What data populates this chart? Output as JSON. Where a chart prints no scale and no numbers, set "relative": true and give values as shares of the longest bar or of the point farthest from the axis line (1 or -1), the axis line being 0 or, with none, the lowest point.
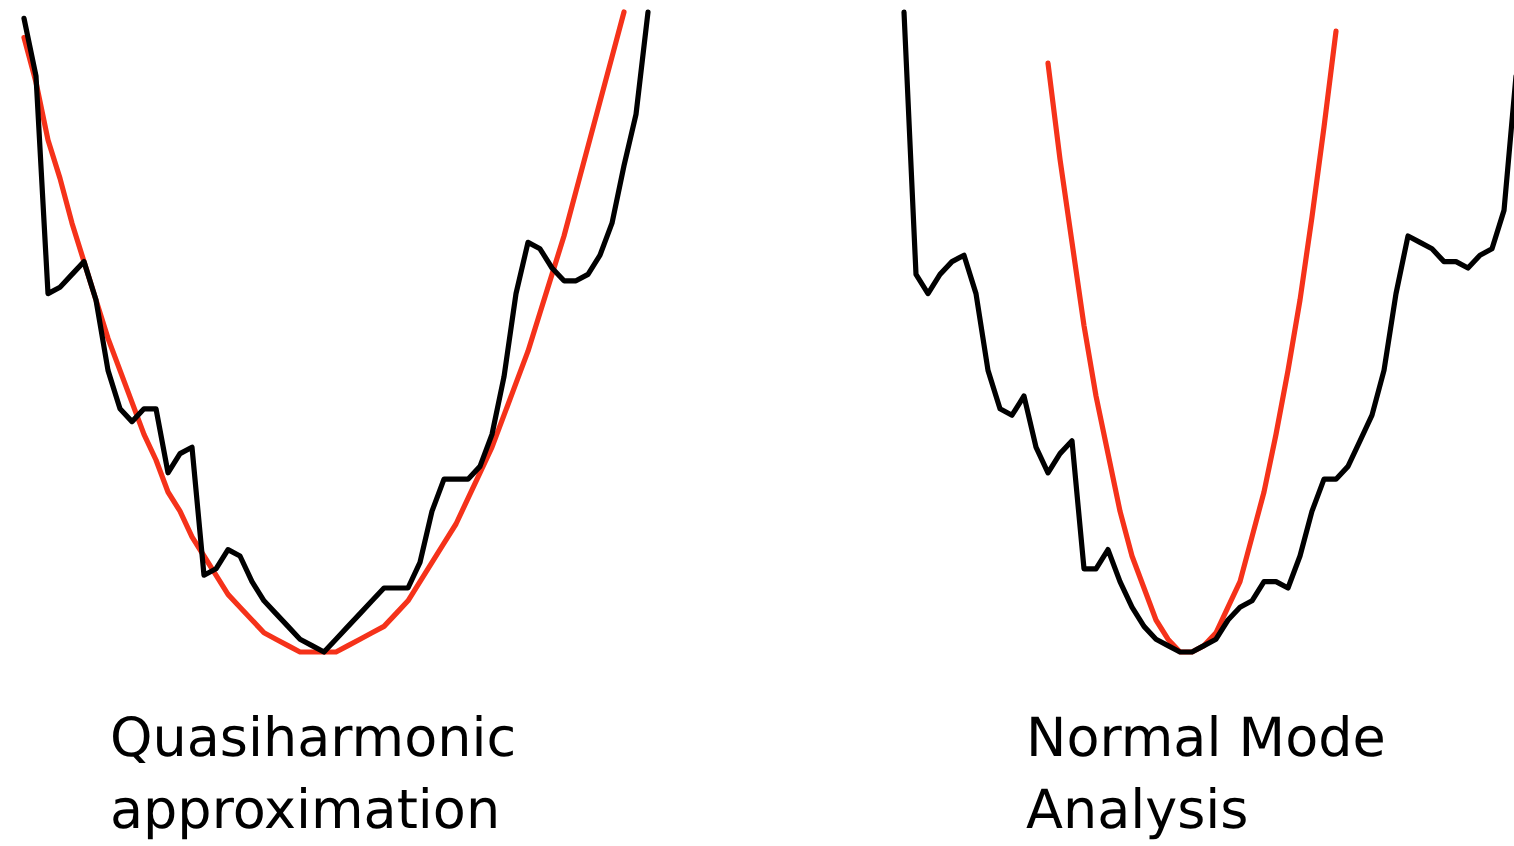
{
  "chart_data": [
    {
      "type": "line",
      "title": "Quasiharmonic approximation",
      "relative": true,
      "legend": false,
      "marker": "none",
      "line_style": "solid",
      "categories": [
        null,
        null,
        null,
        null,
        null,
        null,
        null,
        null,
        null,
        null,
        null,
        null,
        null,
        null,
        null,
        null,
        null,
        null,
        null,
        null,
        null,
        null,
        null,
        null,
        null,
        null,
        null,
        null,
        null,
        null,
        null,
        null,
        null,
        null,
        null,
        null,
        null,
        null,
        null,
        null,
        null,
        null,
        null,
        null,
        null,
        null,
        null,
        null,
        null,
        null,
        null,
        null,
        null
      ],
      "series": [
        {
          "color": "#000000",
          "values": [
            0.99,
            0.9,
            0.56,
            0.57,
            0.59,
            0.61,
            0.55,
            0.44,
            0.38,
            0.36,
            0.38,
            0.38,
            0.28,
            0.31,
            0.32,
            0.12,
            0.13,
            0.16,
            0.15,
            0.11,
            0.08,
            0.06,
            0.04,
            0.02,
            0.01,
            0,
            0.02,
            0.04,
            0.06,
            0.08,
            0.1,
            0.1,
            0.1,
            0.14,
            0.22,
            0.27,
            0.27,
            0.27,
            0.29,
            0.34,
            0.43,
            0.56,
            0.64,
            0.63,
            0.6,
            0.58,
            0.58,
            0.59,
            0.62,
            0.67,
            0.76,
            0.84,
            1
          ]
        },
        {
          "color": "#f5321a",
          "values": [
            0.96,
            0.89,
            0.8,
            0.74,
            0.67,
            0.61,
            0.55,
            0.49,
            0.44,
            0.39,
            0.34,
            0.3,
            0.25,
            0.22,
            0.18,
            0.15,
            0.12,
            0.09,
            0.07,
            0.05,
            0.03,
            0.02,
            0.01,
            0,
            0,
            0,
            0,
            0.01,
            0.02,
            0.03,
            0.04,
            0.06,
            0.08,
            0.11,
            0.14,
            0.17,
            0.2,
            0.24,
            0.28,
            0.32,
            0.37,
            0.42,
            0.47,
            0.53,
            0.59,
            0.65,
            0.72,
            0.79,
            0.86,
            0.93,
            1,
            null,
            null
          ]
        }
      ]
    },
    {
      "type": "line",
      "title": "Normal Mode Analysis",
      "relative": true,
      "legend": false,
      "marker": "none",
      "line_style": "solid",
      "categories": [
        null,
        null,
        null,
        null,
        null,
        null,
        null,
        null,
        null,
        null,
        null,
        null,
        null,
        null,
        null,
        null,
        null,
        null,
        null,
        null,
        null,
        null,
        null,
        null,
        null,
        null,
        null,
        null,
        null,
        null,
        null,
        null,
        null,
        null,
        null,
        null,
        null,
        null,
        null,
        null,
        null,
        null,
        null,
        null,
        null,
        null,
        null,
        null,
        null,
        null,
        null,
        null
      ],
      "series": [
        {
          "color": "#000000",
          "values": [
            1,
            0.59,
            0.56,
            0.59,
            0.61,
            0.62,
            0.56,
            0.44,
            0.38,
            0.37,
            0.4,
            0.32,
            0.28,
            0.31,
            0.33,
            0.13,
            0.13,
            0.16,
            0.11,
            0.07,
            0.04,
            0.02,
            0.01,
            0,
            0,
            0.01,
            0.02,
            0.05,
            0.07,
            0.08,
            0.11,
            0.11,
            0.1,
            0.15,
            0.22,
            0.27,
            0.27,
            0.29,
            0.33,
            0.37,
            0.44,
            0.56,
            0.65,
            0.64,
            0.63,
            0.61,
            0.61,
            0.6,
            0.62,
            0.63,
            0.69,
            0.9
          ]
        },
        {
          "color": "#f5321a",
          "values": [
            null,
            null,
            null,
            null,
            null,
            null,
            null,
            null,
            null,
            null,
            null,
            null,
            0.92,
            0.77,
            0.64,
            0.51,
            0.4,
            0.31,
            0.22,
            0.15,
            0.1,
            0.05,
            0.02,
            0,
            0,
            0.01,
            0.03,
            0.07,
            0.11,
            0.18,
            0.25,
            0.34,
            0.44,
            0.55,
            0.68,
            0.82,
            0.97,
            null,
            null,
            null,
            null,
            null,
            null,
            null,
            null,
            null,
            null,
            null,
            null,
            null,
            null,
            null
          ]
        }
      ]
    }
  ]
}
